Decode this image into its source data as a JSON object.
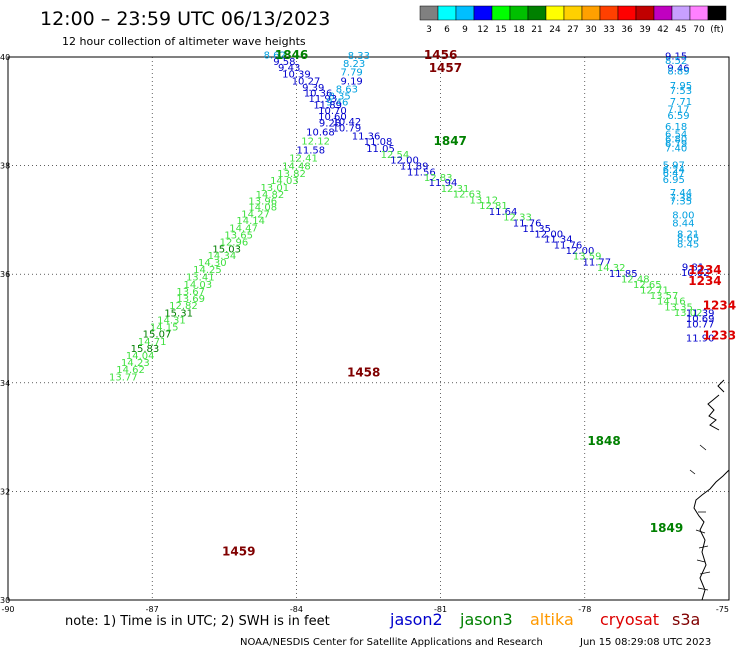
{
  "header": {
    "title": "12:00 – 23:59 UTC 06/13/2023",
    "subtitle": "12 hour collection of altimeter wave heights"
  },
  "legend": {
    "labels": [
      "3",
      "6",
      "9",
      "12",
      "15",
      "18",
      "21",
      "24",
      "27",
      "30",
      "33",
      "36",
      "39",
      "42",
      "45",
      "70",
      "(ft)"
    ],
    "colors": [
      "#808080",
      "#00ffff",
      "#00bfff",
      "#0000ff",
      "#00ff00",
      "#00c000",
      "#008000",
      "#ffff00",
      "#ffd000",
      "#ffa000",
      "#ff4000",
      "#ff0000",
      "#c00000",
      "#c000c0",
      "#c8a0ff",
      "#ff80ff",
      "#000000"
    ]
  },
  "footer": {
    "note": "note:  1) Time is in UTC;  2) SWH is in feet",
    "credit": "NOAA/NESDIS Center for Satellite Applications and Research",
    "timestamp": "Jun 15 08:29:08 UTC 2023"
  },
  "satellites": [
    {
      "name": "jason2",
      "color": "#0000cc"
    },
    {
      "name": "jason3",
      "color": "#008000"
    },
    {
      "name": "altika",
      "color": "#ff9900"
    },
    {
      "name": "cryosat",
      "color": "#dd0000"
    },
    {
      "name": "s3a",
      "color": "#800000"
    }
  ],
  "chart_data": {
    "type": "scatter",
    "title": "12:00 – 23:59 UTC 06/13/2023",
    "xlabel": "",
    "ylabel": "",
    "xlim": [
      -90,
      -75
    ],
    "ylim": [
      30,
      40
    ],
    "x_ticks": [
      -90,
      -87,
      -84,
      -81,
      -78,
      -75
    ],
    "y_ticks": [
      30,
      32,
      34,
      36,
      38,
      40
    ],
    "grid": true,
    "colors": {
      "lightblue": "#00a0e0",
      "blue": "#0000cc",
      "lightgreen": "#40e040",
      "green": "#008000",
      "red": "#dd0000",
      "darkred": "#800000"
    },
    "time_labels": [
      {
        "text": "1846",
        "x": -84.1,
        "y": 39.96,
        "c": "green"
      },
      {
        "text": "1456",
        "x": -81.0,
        "y": 39.96,
        "c": "darkred"
      },
      {
        "text": "1457",
        "x": -80.9,
        "y": 39.72,
        "c": "darkred"
      },
      {
        "text": "1847",
        "x": -80.8,
        "y": 38.38,
        "c": "green"
      },
      {
        "text": "1458",
        "x": -82.6,
        "y": 34.12,
        "c": "darkred"
      },
      {
        "text": "1848",
        "x": -77.6,
        "y": 32.85,
        "c": "green"
      },
      {
        "text": "1459",
        "x": -85.2,
        "y": 30.82,
        "c": "darkred"
      },
      {
        "text": "1849",
        "x": -76.3,
        "y": 31.25,
        "c": "green"
      },
      {
        "text": "1234",
        "x": -75.5,
        "y": 36.0,
        "c": "red"
      },
      {
        "text": "1234",
        "x": -75.5,
        "y": 35.8,
        "c": "red"
      },
      {
        "text": "1234",
        "x": -75.2,
        "y": 35.35,
        "c": "red"
      },
      {
        "text": "1233",
        "x": -75.2,
        "y": 34.8,
        "c": "red"
      }
    ],
    "points": [
      {
        "text": "8.62",
        "x": -84.45,
        "y": 39.97,
        "c": "lightblue"
      },
      {
        "text": "8.33",
        "x": -82.7,
        "y": 39.96,
        "c": "lightblue"
      },
      {
        "text": "9.58",
        "x": -84.25,
        "y": 39.85,
        "c": "blue"
      },
      {
        "text": "8.23",
        "x": -82.8,
        "y": 39.82,
        "c": "lightblue"
      },
      {
        "text": "9.43",
        "x": -84.15,
        "y": 39.74,
        "c": "blue"
      },
      {
        "text": "7.79",
        "x": -82.85,
        "y": 39.66,
        "c": "lightblue"
      },
      {
        "text": "10.39",
        "x": -84.0,
        "y": 39.62,
        "c": "blue"
      },
      {
        "text": "10.27",
        "x": -83.8,
        "y": 39.49,
        "c": "blue"
      },
      {
        "text": "9.19",
        "x": -82.85,
        "y": 39.49,
        "c": "blue"
      },
      {
        "text": "9.39",
        "x": -83.65,
        "y": 39.37,
        "c": "blue"
      },
      {
        "text": "8.63",
        "x": -82.95,
        "y": 39.35,
        "c": "lightblue"
      },
      {
        "text": "10.36",
        "x": -83.55,
        "y": 39.27,
        "c": "blue"
      },
      {
        "text": "8.35",
        "x": -83.1,
        "y": 39.22,
        "c": "lightblue"
      },
      {
        "text": "11.93",
        "x": -83.45,
        "y": 39.17,
        "c": "blue"
      },
      {
        "text": "9.46",
        "x": -83.15,
        "y": 39.11,
        "c": "lightblue"
      },
      {
        "text": "11.89",
        "x": -83.35,
        "y": 39.05,
        "c": "blue"
      },
      {
        "text": "10.70",
        "x": -83.25,
        "y": 38.95,
        "c": "blue"
      },
      {
        "text": "10.60",
        "x": -83.25,
        "y": 38.84,
        "c": "blue"
      },
      {
        "text": "10.42",
        "x": -82.95,
        "y": 38.75,
        "c": "blue"
      },
      {
        "text": "9.28",
        "x": -83.3,
        "y": 38.72,
        "c": "blue"
      },
      {
        "text": "10.79",
        "x": -82.95,
        "y": 38.63,
        "c": "blue"
      },
      {
        "text": "10.68",
        "x": -83.5,
        "y": 38.55,
        "c": "blue"
      },
      {
        "text": "11.36",
        "x": -82.55,
        "y": 38.48,
        "c": "blue"
      },
      {
        "text": "12.12",
        "x": -83.6,
        "y": 38.39,
        "c": "lightgreen"
      },
      {
        "text": "11.08",
        "x": -82.3,
        "y": 38.38,
        "c": "blue"
      },
      {
        "text": "11.58",
        "x": -83.7,
        "y": 38.22,
        "c": "blue"
      },
      {
        "text": "11.05",
        "x": -82.25,
        "y": 38.25,
        "c": "blue"
      },
      {
        "text": "12.54",
        "x": -81.95,
        "y": 38.14,
        "c": "lightgreen"
      },
      {
        "text": "12.41",
        "x": -83.85,
        "y": 38.08,
        "c": "lightgreen"
      },
      {
        "text": "12.00",
        "x": -81.75,
        "y": 38.04,
        "c": "blue"
      },
      {
        "text": "14.48",
        "x": -84.0,
        "y": 37.93,
        "c": "lightgreen"
      },
      {
        "text": "11.89",
        "x": -81.55,
        "y": 37.93,
        "c": "blue"
      },
      {
        "text": "13.82",
        "x": -84.1,
        "y": 37.79,
        "c": "lightgreen"
      },
      {
        "text": "11.56",
        "x": -81.4,
        "y": 37.82,
        "c": "blue"
      },
      {
        "text": "12.83",
        "x": -81.05,
        "y": 37.72,
        "c": "lightgreen"
      },
      {
        "text": "14.03",
        "x": -84.25,
        "y": 37.66,
        "c": "lightgreen"
      },
      {
        "text": "11.94",
        "x": -80.95,
        "y": 37.62,
        "c": "blue"
      },
      {
        "text": "13.01",
        "x": -84.45,
        "y": 37.53,
        "c": "lightgreen"
      },
      {
        "text": "12.31",
        "x": -80.7,
        "y": 37.51,
        "c": "lightgreen"
      },
      {
        "text": "14.82",
        "x": -84.55,
        "y": 37.4,
        "c": "lightgreen"
      },
      {
        "text": "12.63",
        "x": -80.45,
        "y": 37.41,
        "c": "lightgreen"
      },
      {
        "text": "13.96",
        "x": -84.7,
        "y": 37.28,
        "c": "lightgreen"
      },
      {
        "text": "13.12",
        "x": -80.1,
        "y": 37.3,
        "c": "lightgreen"
      },
      {
        "text": "14.08",
        "x": -84.7,
        "y": 37.17,
        "c": "lightgreen"
      },
      {
        "text": "12.81",
        "x": -79.9,
        "y": 37.2,
        "c": "lightgreen"
      },
      {
        "text": "11.64",
        "x": -79.7,
        "y": 37.09,
        "c": "blue"
      },
      {
        "text": "14.27",
        "x": -84.85,
        "y": 37.04,
        "c": "lightgreen"
      },
      {
        "text": "12.33",
        "x": -79.4,
        "y": 36.99,
        "c": "lightgreen"
      },
      {
        "text": "14.14",
        "x": -84.95,
        "y": 36.92,
        "c": "lightgreen"
      },
      {
        "text": "11.76",
        "x": -79.2,
        "y": 36.88,
        "c": "blue"
      },
      {
        "text": "14.47",
        "x": -85.1,
        "y": 36.79,
        "c": "lightgreen"
      },
      {
        "text": "11.35",
        "x": -79.0,
        "y": 36.78,
        "c": "blue"
      },
      {
        "text": "13.65",
        "x": -85.2,
        "y": 36.66,
        "c": "lightgreen"
      },
      {
        "text": "12.00",
        "x": -78.75,
        "y": 36.68,
        "c": "blue"
      },
      {
        "text": "11.34",
        "x": -78.55,
        "y": 36.58,
        "c": "blue"
      },
      {
        "text": "12.96",
        "x": -85.3,
        "y": 36.53,
        "c": "lightgreen"
      },
      {
        "text": "11.76",
        "x": -78.35,
        "y": 36.47,
        "c": "blue"
      },
      {
        "text": "15.03",
        "x": -85.45,
        "y": 36.4,
        "c": "green"
      },
      {
        "text": "12.00",
        "x": -78.1,
        "y": 36.37,
        "c": "blue"
      },
      {
        "text": "13.59",
        "x": -77.95,
        "y": 36.27,
        "c": "lightgreen"
      },
      {
        "text": "14.34",
        "x": -85.55,
        "y": 36.28,
        "c": "lightgreen"
      },
      {
        "text": "11.77",
        "x": -77.75,
        "y": 36.16,
        "c": "blue"
      },
      {
        "text": "14.30",
        "x": -85.75,
        "y": 36.15,
        "c": "lightgreen"
      },
      {
        "text": "14.32",
        "x": -77.45,
        "y": 36.06,
        "c": "lightgreen"
      },
      {
        "text": "14.25",
        "x": -85.85,
        "y": 36.02,
        "c": "lightgreen"
      },
      {
        "text": "11.85",
        "x": -77.2,
        "y": 35.95,
        "c": "blue"
      },
      {
        "text": "13.41",
        "x": -86.0,
        "y": 35.88,
        "c": "lightgreen"
      },
      {
        "text": "12.48",
        "x": -76.95,
        "y": 35.85,
        "c": "lightgreen"
      },
      {
        "text": "12.65",
        "x": -76.7,
        "y": 35.75,
        "c": "lightgreen"
      },
      {
        "text": "14.03",
        "x": -86.05,
        "y": 35.75,
        "c": "lightgreen"
      },
      {
        "text": "12.71",
        "x": -76.55,
        "y": 35.64,
        "c": "lightgreen"
      },
      {
        "text": "13.67",
        "x": -86.2,
        "y": 35.62,
        "c": "lightgreen"
      },
      {
        "text": "13.57",
        "x": -76.35,
        "y": 35.54,
        "c": "lightgreen"
      },
      {
        "text": "13.69",
        "x": -86.2,
        "y": 35.49,
        "c": "lightgreen"
      },
      {
        "text": "14.16",
        "x": -76.2,
        "y": 35.44,
        "c": "lightgreen"
      },
      {
        "text": "12.82",
        "x": -86.35,
        "y": 35.36,
        "c": "lightgreen"
      },
      {
        "text": "13.35",
        "x": -76.05,
        "y": 35.33,
        "c": "lightgreen"
      },
      {
        "text": "15.31",
        "x": -86.45,
        "y": 35.22,
        "c": "green"
      },
      {
        "text": "13.02",
        "x": -75.85,
        "y": 35.23,
        "c": "lightgreen"
      },
      {
        "text": "14.31",
        "x": -86.6,
        "y": 35.09,
        "c": "lightgreen"
      },
      {
        "text": "14.15",
        "x": -86.75,
        "y": 34.96,
        "c": "lightgreen"
      },
      {
        "text": "15.07",
        "x": -86.9,
        "y": 34.83,
        "c": "green"
      },
      {
        "text": "14.71",
        "x": -87.0,
        "y": 34.7,
        "c": "lightgreen"
      },
      {
        "text": "15.83",
        "x": -87.15,
        "y": 34.57,
        "c": "green"
      },
      {
        "text": "14.04",
        "x": -87.25,
        "y": 34.44,
        "c": "lightgreen"
      },
      {
        "text": "14.23",
        "x": -87.35,
        "y": 34.31,
        "c": "lightgreen"
      },
      {
        "text": "14.62",
        "x": -87.45,
        "y": 34.18,
        "c": "lightgreen"
      },
      {
        "text": "13.77",
        "x": -87.6,
        "y": 34.04,
        "c": "lightgreen"
      },
      {
        "text": "9.15",
        "x": -76.1,
        "y": 39.95,
        "c": "blue"
      },
      {
        "text": "8.52",
        "x": -76.1,
        "y": 39.87,
        "c": "lightblue"
      },
      {
        "text": "9.46",
        "x": -76.05,
        "y": 39.73,
        "c": "blue"
      },
      {
        "text": "8.89",
        "x": -76.05,
        "y": 39.68,
        "c": "lightblue"
      },
      {
        "text": "7.95",
        "x": -76.0,
        "y": 39.41,
        "c": "lightblue"
      },
      {
        "text": "7.53",
        "x": -76.0,
        "y": 39.32,
        "c": "lightblue"
      },
      {
        "text": "7.71",
        "x": -76.0,
        "y": 39.12,
        "c": "lightblue"
      },
      {
        "text": "7.17",
        "x": -76.05,
        "y": 38.98,
        "c": "lightblue"
      },
      {
        "text": "6.59",
        "x": -76.05,
        "y": 38.86,
        "c": "lightblue"
      },
      {
        "text": "6.18",
        "x": -76.1,
        "y": 38.66,
        "c": "lightblue"
      },
      {
        "text": "6.54",
        "x": -76.1,
        "y": 38.52,
        "c": "lightblue"
      },
      {
        "text": "6.80",
        "x": -76.1,
        "y": 38.43,
        "c": "lightblue"
      },
      {
        "text": "6.79",
        "x": -76.1,
        "y": 38.34,
        "c": "lightblue"
      },
      {
        "text": "7.40",
        "x": -76.1,
        "y": 38.26,
        "c": "lightblue"
      },
      {
        "text": "5.97",
        "x": -76.15,
        "y": 37.95,
        "c": "lightblue"
      },
      {
        "text": "6.24",
        "x": -76.15,
        "y": 37.86,
        "c": "lightblue"
      },
      {
        "text": "6.47",
        "x": -76.15,
        "y": 37.8,
        "c": "lightblue"
      },
      {
        "text": "6.95",
        "x": -76.15,
        "y": 37.68,
        "c": "lightblue"
      },
      {
        "text": "7.44",
        "x": -76.0,
        "y": 37.44,
        "c": "lightblue"
      },
      {
        "text": "7.38",
        "x": -76.0,
        "y": 37.35,
        "c": "lightblue"
      },
      {
        "text": "7.35",
        "x": -76.0,
        "y": 37.28,
        "c": "lightblue"
      },
      {
        "text": "8.00",
        "x": -75.95,
        "y": 37.03,
        "c": "lightblue"
      },
      {
        "text": "8.44",
        "x": -75.95,
        "y": 36.88,
        "c": "lightblue"
      },
      {
        "text": "8.21",
        "x": -75.85,
        "y": 36.68,
        "c": "lightblue"
      },
      {
        "text": "8.65",
        "x": -75.85,
        "y": 36.6,
        "c": "lightblue"
      },
      {
        "text": "8.45",
        "x": -75.85,
        "y": 36.49,
        "c": "lightblue"
      },
      {
        "text": "9.81",
        "x": -75.75,
        "y": 36.07,
        "c": "blue"
      },
      {
        "text": "10.02",
        "x": -75.7,
        "y": 35.97,
        "c": "blue"
      },
      {
        "text": "11.39",
        "x": -75.6,
        "y": 35.22,
        "c": "blue"
      },
      {
        "text": "10.69",
        "x": -75.6,
        "y": 35.12,
        "c": "blue"
      },
      {
        "text": "10.77",
        "x": -75.6,
        "y": 35.02,
        "c": "blue"
      },
      {
        "text": "11.90",
        "x": -75.6,
        "y": 34.76,
        "c": "blue"
      }
    ]
  }
}
